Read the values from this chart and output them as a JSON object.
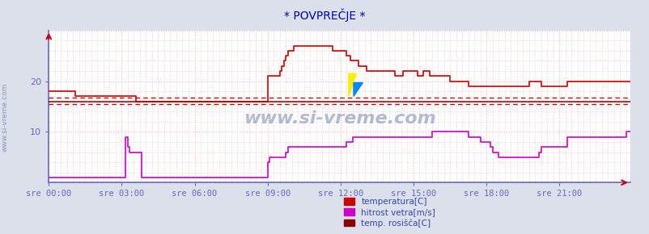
{
  "title": "* POVPREČJE *",
  "bg_color": "#dce0ea",
  "plot_bg_color": "#ffffff",
  "grid_color": "#ffbbbb",
  "ylabel_color": "#444466",
  "title_color": "#0000bb",
  "xlabel_color": "#3344aa",
  "watermark": "www.si-vreme.com",
  "x_labels": [
    "sre 00:00",
    "sre 03:00",
    "sre 06:00",
    "sre 09:00",
    "sre 12:00",
    "sre 15:00",
    "sre 18:00",
    "sre 21:00"
  ],
  "x_ticks": [
    0,
    36,
    72,
    108,
    144,
    180,
    216,
    252
  ],
  "ylim": [
    0,
    30
  ],
  "yticks": [
    10,
    20
  ],
  "legend_labels": [
    "temperatura[C]",
    "hitrost vetra[m/s]",
    "temp. rosišča[C]"
  ],
  "temp_color": "#cc0000",
  "wind_color": "#cc00cc",
  "dew_color": "#880000",
  "hline1_y": 16.8,
  "hline2_y": 15.5,
  "hline_color": "#cc0000",
  "axis_color": "#6666cc",
  "n_points": 288,
  "temperatura": [
    18,
    18,
    18,
    18,
    18,
    18,
    18,
    18,
    18,
    18,
    18,
    18,
    18,
    17,
    17,
    17,
    17,
    17,
    17,
    17,
    17,
    17,
    17,
    17,
    17,
    17,
    17,
    17,
    17,
    17,
    17,
    17,
    17,
    17,
    17,
    17,
    17,
    17,
    17,
    17,
    17,
    17,
    17,
    16,
    16,
    16,
    16,
    16,
    16,
    16,
    16,
    16,
    16,
    16,
    16,
    16,
    16,
    16,
    16,
    16,
    16,
    16,
    16,
    16,
    16,
    16,
    16,
    16,
    16,
    16,
    16,
    16,
    16,
    16,
    16,
    16,
    16,
    16,
    16,
    16,
    16,
    16,
    16,
    16,
    16,
    16,
    16,
    16,
    16,
    16,
    16,
    16,
    16,
    16,
    16,
    16,
    16,
    16,
    16,
    16,
    16,
    16,
    16,
    16,
    16,
    16,
    16,
    16,
    21,
    21,
    21,
    21,
    21,
    21,
    22,
    23,
    24,
    25,
    26,
    26,
    26,
    27,
    27,
    27,
    27,
    27,
    27,
    27,
    27,
    27,
    27,
    27,
    27,
    27,
    27,
    27,
    27,
    27,
    27,
    27,
    26,
    26,
    26,
    26,
    26,
    26,
    26,
    25,
    25,
    24,
    24,
    24,
    24,
    23,
    23,
    23,
    23,
    22,
    22,
    22,
    22,
    22,
    22,
    22,
    22,
    22,
    22,
    22,
    22,
    22,
    22,
    21,
    21,
    21,
    21,
    22,
    22,
    22,
    22,
    22,
    22,
    22,
    21,
    21,
    21,
    22,
    22,
    22,
    21,
    21,
    21,
    21,
    21,
    21,
    21,
    21,
    21,
    21,
    20,
    20,
    20,
    20,
    20,
    20,
    20,
    20,
    20,
    19,
    19,
    19,
    19,
    19,
    19,
    19,
    19,
    19,
    19,
    19,
    19,
    19,
    19,
    19,
    19,
    19,
    19,
    19,
    19,
    19,
    19,
    19,
    19,
    19,
    19,
    19,
    19,
    19,
    19,
    20,
    20,
    20,
    20,
    20,
    20,
    19,
    19,
    19,
    19,
    19,
    19,
    19,
    19,
    19,
    19,
    19,
    19,
    19,
    20,
    20,
    20,
    20,
    20,
    20,
    20,
    20,
    20,
    20,
    20,
    20,
    20,
    20,
    20,
    20,
    20,
    20,
    20,
    20,
    20,
    20,
    20,
    20,
    20,
    20,
    20,
    20,
    20,
    20,
    20,
    20
  ],
  "hitrost_vetra": [
    1,
    1,
    1,
    1,
    1,
    1,
    1,
    1,
    1,
    1,
    1,
    1,
    1,
    1,
    1,
    1,
    1,
    1,
    1,
    1,
    1,
    1,
    1,
    1,
    1,
    1,
    1,
    1,
    1,
    1,
    1,
    1,
    1,
    1,
    1,
    1,
    1,
    1,
    9,
    7,
    6,
    6,
    6,
    6,
    6,
    6,
    1,
    1,
    1,
    1,
    1,
    1,
    1,
    1,
    1,
    1,
    1,
    1,
    1,
    1,
    1,
    1,
    1,
    1,
    1,
    1,
    1,
    1,
    1,
    1,
    1,
    1,
    1,
    1,
    1,
    1,
    1,
    1,
    1,
    1,
    1,
    1,
    1,
    1,
    1,
    1,
    1,
    1,
    1,
    1,
    1,
    1,
    1,
    1,
    1,
    1,
    1,
    1,
    1,
    1,
    1,
    1,
    1,
    1,
    1,
    1,
    1,
    1,
    4,
    5,
    5,
    5,
    5,
    5,
    5,
    5,
    5,
    6,
    7,
    7,
    7,
    7,
    7,
    7,
    7,
    7,
    7,
    7,
    7,
    7,
    7,
    7,
    7,
    7,
    7,
    7,
    7,
    7,
    7,
    7,
    7,
    7,
    7,
    7,
    7,
    7,
    7,
    8,
    8,
    8,
    9,
    9,
    9,
    9,
    9,
    9,
    9,
    9,
    9,
    9,
    9,
    9,
    9,
    9,
    9,
    9,
    9,
    9,
    9,
    9,
    9,
    9,
    9,
    9,
    9,
    9,
    9,
    9,
    9,
    9,
    9,
    9,
    9,
    9,
    9,
    9,
    9,
    9,
    9,
    10,
    10,
    10,
    10,
    10,
    10,
    10,
    10,
    10,
    10,
    10,
    10,
    10,
    10,
    10,
    10,
    10,
    10,
    9,
    9,
    9,
    9,
    9,
    9,
    8,
    8,
    8,
    8,
    8,
    7,
    6,
    6,
    6,
    5,
    5,
    5,
    5,
    5,
    5,
    5,
    5,
    5,
    5,
    5,
    5,
    5,
    5,
    5,
    5,
    5,
    5,
    5,
    5,
    6,
    7,
    7,
    7,
    7,
    7,
    7,
    7,
    7,
    7,
    7,
    7,
    7,
    7,
    9,
    9,
    9,
    9,
    9,
    9,
    9,
    9,
    9,
    9,
    9,
    9,
    9,
    9,
    9,
    9,
    9,
    9,
    9,
    9,
    9,
    9,
    9,
    9,
    9,
    9,
    9,
    9,
    9,
    10,
    10,
    10
  ],
  "dew_point": [
    16,
    16,
    16,
    16,
    16,
    16,
    16,
    16,
    16,
    16,
    16,
    16,
    16,
    16,
    16,
    16,
    16,
    16,
    16,
    16,
    16,
    16,
    16,
    16,
    16,
    16,
    16,
    16,
    16,
    16,
    16,
    16,
    16,
    16,
    16,
    16,
    16,
    16,
    16,
    16,
    16,
    16,
    16,
    16,
    16,
    16,
    16,
    16,
    16,
    16,
    16,
    16,
    16,
    16,
    16,
    16,
    16,
    16,
    16,
    16,
    16,
    16,
    16,
    16,
    16,
    16,
    16,
    16,
    16,
    16,
    16,
    16,
    16,
    16,
    16,
    16,
    16,
    16,
    16,
    16,
    16,
    16,
    16,
    16,
    16,
    16,
    16,
    16,
    16,
    16,
    16,
    16,
    16,
    16,
    16,
    16,
    16,
    16,
    16,
    16,
    16,
    16,
    16,
    16,
    16,
    16,
    16,
    16,
    16,
    16,
    16,
    16,
    16,
    16,
    16,
    16,
    16,
    16,
    16,
    16,
    16,
    16,
    16,
    16,
    16,
    16,
    16,
    16,
    16,
    16,
    16,
    16,
    16,
    16,
    16,
    16,
    16,
    16,
    16,
    16,
    16,
    16,
    16,
    16,
    16,
    16,
    16,
    16,
    16,
    16,
    16,
    16,
    16,
    16,
    16,
    16,
    16,
    16,
    16,
    16,
    16,
    16,
    16,
    16,
    16,
    16,
    16,
    16,
    16,
    16,
    16,
    16,
    16,
    16,
    16,
    16,
    16,
    16,
    16,
    16,
    16,
    16,
    16,
    16,
    16,
    16,
    16,
    16,
    16,
    16,
    16,
    16,
    16,
    16,
    16,
    16,
    16,
    16,
    16,
    16,
    16,
    16,
    16,
    16,
    16,
    16,
    16,
    16,
    16,
    16,
    16,
    16,
    16,
    16,
    16,
    16,
    16,
    16,
    16,
    16,
    16,
    16,
    16,
    16,
    16,
    16,
    16,
    16,
    16,
    16,
    16,
    16,
    16,
    16,
    16,
    16,
    16,
    16,
    16,
    16,
    16,
    16,
    16,
    16,
    16,
    16,
    16,
    16,
    16,
    16,
    16,
    16,
    16,
    16,
    16,
    16,
    16,
    16,
    16,
    16,
    16,
    16,
    16,
    16,
    16,
    16,
    16,
    16,
    16,
    16,
    16,
    16,
    16,
    16,
    16,
    16,
    16,
    16,
    16,
    16,
    16,
    16,
    16,
    16,
    16,
    16,
    16,
    16
  ]
}
